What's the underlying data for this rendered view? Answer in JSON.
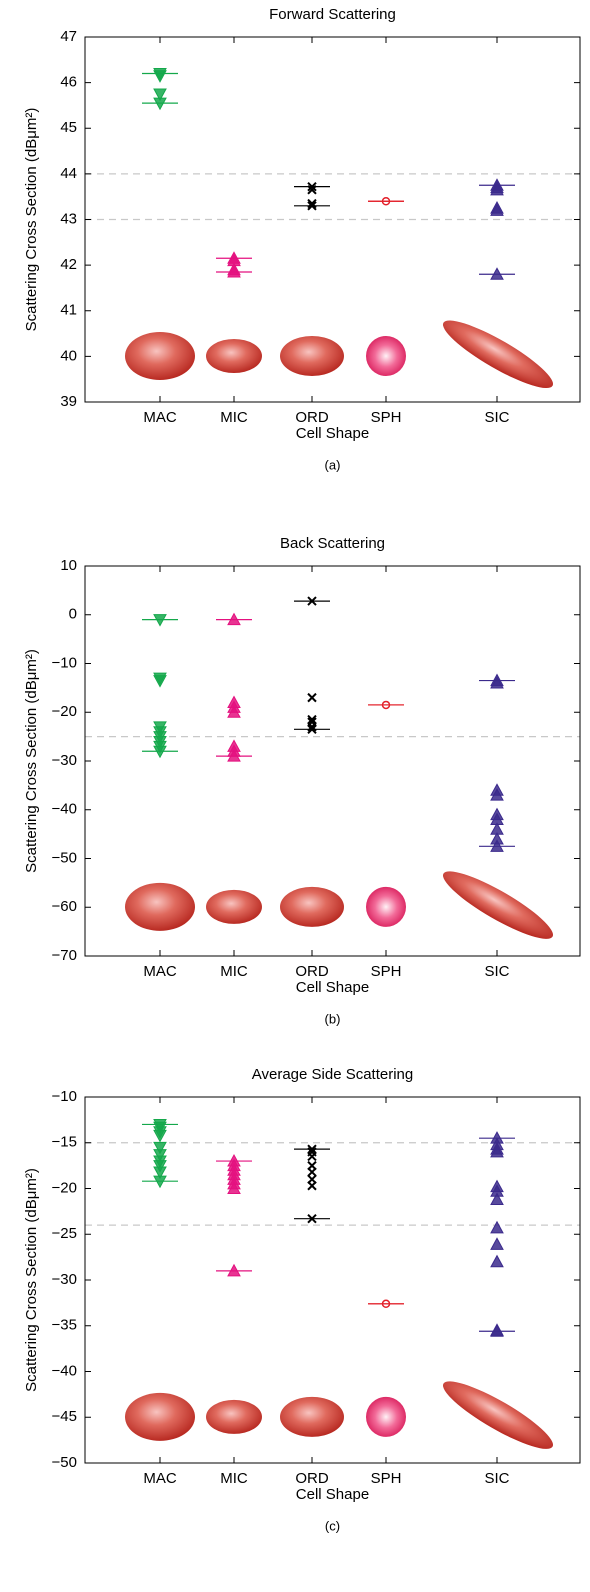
{
  "chart_data": [
    {
      "type": "strip",
      "title": "Forward Scattering",
      "x_label": "Cell Shape",
      "y_label": "Scattering Cross Section (dBμm²)",
      "panel_label": "(a)",
      "ylim": [
        39,
        47
      ],
      "yticks": [
        39,
        40,
        41,
        42,
        43,
        44,
        45,
        46,
        47
      ],
      "reference_lines": [
        43,
        44
      ],
      "groups": [
        {
          "category": "MAC",
          "color": "#14a84b",
          "marker": "triangle-down",
          "values": [
            46.2,
            46.15,
            45.75,
            45.55
          ]
        },
        {
          "category": "MIC",
          "color": "#e4117f",
          "marker": "triangle-up",
          "values": [
            42.15,
            42.1,
            41.9,
            41.85
          ]
        },
        {
          "category": "ORD",
          "color": "#000000",
          "marker": "x",
          "values": [
            43.72,
            43.65,
            43.35,
            43.3
          ]
        },
        {
          "category": "SPH",
          "color": "#e3202a",
          "marker": "circle",
          "values": [
            43.4
          ]
        },
        {
          "category": "SIC",
          "color": "#3b2a8c",
          "marker": "triangle-up",
          "values": [
            43.75,
            43.7,
            43.65,
            43.25,
            43.2,
            41.8
          ]
        }
      ]
    },
    {
      "type": "strip",
      "title": "Back Scattering",
      "x_label": "Cell Shape",
      "y_label": "Scattering Cross Section (dBμm²)",
      "panel_label": "(b)",
      "ylim": [
        -70,
        10
      ],
      "yticks": [
        {
          "value": -70,
          "label": "−70"
        },
        {
          "value": -60,
          "label": "−60"
        },
        {
          "value": -50,
          "label": "−50"
        },
        {
          "value": -40,
          "label": "−40"
        },
        {
          "value": -30,
          "label": "−30"
        },
        {
          "value": -20,
          "label": "−20"
        },
        {
          "value": -10,
          "label": "−10"
        },
        0,
        10
      ],
      "reference_lines": [
        -25
      ],
      "groups": [
        {
          "category": "MAC",
          "color": "#14a84b",
          "marker": "triangle-down",
          "values": [
            -1,
            -13,
            -13.5,
            -23,
            -24,
            -25,
            -26,
            -27,
            -28
          ]
        },
        {
          "category": "MIC",
          "color": "#e4117f",
          "marker": "triangle-up",
          "values": [
            -1,
            -18,
            -19,
            -20,
            -27,
            -28,
            -29
          ]
        },
        {
          "category": "ORD",
          "color": "#000000",
          "marker": "x",
          "values": [
            2.8,
            -17,
            -21.5,
            -22,
            -23,
            -23.5
          ]
        },
        {
          "category": "SPH",
          "color": "#e3202a",
          "marker": "circle",
          "values": [
            -18.5
          ]
        },
        {
          "category": "SIC",
          "color": "#3b2a8c",
          "marker": "triangle-up",
          "values": [
            -13.5,
            -14,
            -36,
            -37,
            -41,
            -42,
            -44,
            -46,
            -47.5
          ]
        }
      ]
    },
    {
      "type": "strip",
      "title": "Average Side Scattering",
      "x_label": "Cell Shape",
      "y_label": "Scattering Cross Section (dBμm²)",
      "panel_label": "(c)",
      "ylim": [
        -50,
        -10
      ],
      "yticks": [
        {
          "value": -50,
          "label": "−50"
        },
        {
          "value": -45,
          "label": "−45"
        },
        {
          "value": -40,
          "label": "−40"
        },
        {
          "value": -35,
          "label": "−35"
        },
        {
          "value": -30,
          "label": "−30"
        },
        {
          "value": -25,
          "label": "−25"
        },
        {
          "value": -20,
          "label": "−20"
        },
        {
          "value": -15,
          "label": "−15"
        },
        {
          "value": -10,
          "label": "−10"
        }
      ],
      "reference_lines": [
        -15,
        -24
      ],
      "groups": [
        {
          "category": "MAC",
          "color": "#14a84b",
          "marker": "triangle-down",
          "values": [
            -13,
            -13.3,
            -13.8,
            -14.2,
            -15.5,
            -16.3,
            -17,
            -17.5,
            -18.2,
            -19.2
          ]
        },
        {
          "category": "MIC",
          "color": "#e4117f",
          "marker": "triangle-up",
          "values": [
            -17,
            -17.5,
            -18,
            -18.5,
            -19,
            -19.5,
            -20,
            -29
          ]
        },
        {
          "category": "ORD",
          "color": "#000000",
          "marker": "x",
          "values": [
            -15.7,
            -16,
            -16.5,
            -17.5,
            -18.2,
            -19,
            -19.7,
            -23.3
          ]
        },
        {
          "category": "SPH",
          "color": "#e3202a",
          "marker": "circle",
          "values": [
            -32.6
          ]
        },
        {
          "category": "SIC",
          "color": "#3b2a8c",
          "marker": "triangle-up",
          "values": [
            -14.5,
            -15.2,
            -15.7,
            -16,
            -19.8,
            -20.3,
            -21.2,
            -24.3,
            -26.1,
            -28,
            -35.5,
            -35.6
          ]
        }
      ]
    }
  ]
}
